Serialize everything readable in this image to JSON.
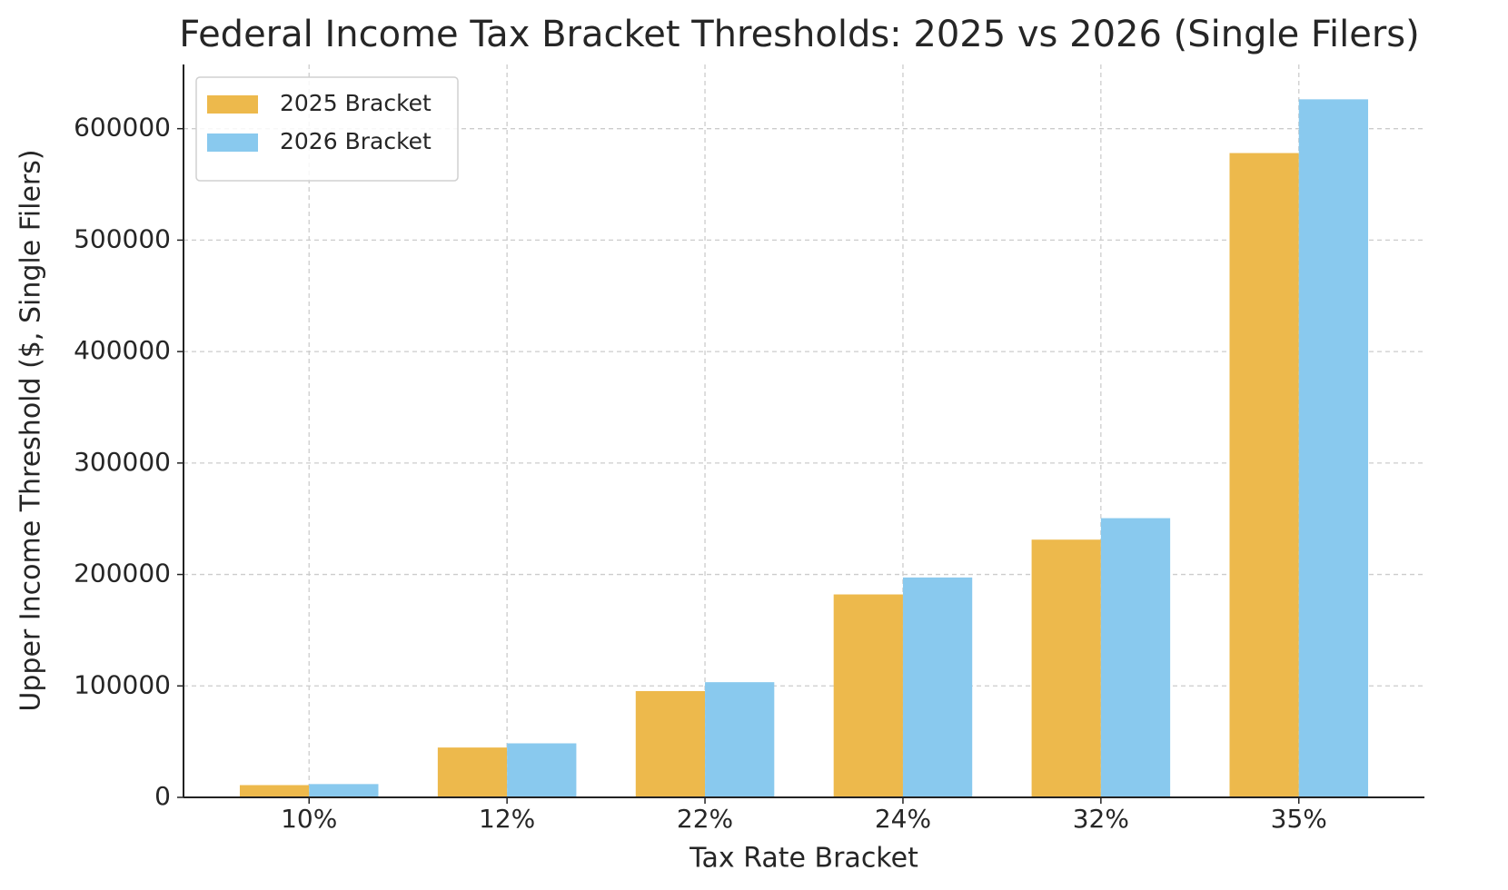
{
  "chart_data": {
    "type": "bar",
    "title": "Federal Income Tax Bracket Thresholds: 2025 vs 2026 (Single Filers)",
    "x_label": "Tax Rate Bracket",
    "y_label": "Upper Income Threshold ($, Single Filers)",
    "categories": [
      "10%",
      "12%",
      "22%",
      "24%",
      "32%",
      "35%"
    ],
    "series": [
      {
        "name": "2025 Bracket",
        "color": "#edb94c",
        "values": [
          11000,
          44725,
          95375,
          182100,
          231250,
          578125
        ]
      },
      {
        "name": "2026 Bracket",
        "color": "#89c9ee",
        "values": [
          11925,
          48475,
          103350,
          197300,
          250525,
          626350
        ]
      }
    ],
    "ylim": [
      0,
      657600
    ],
    "yticks": [
      0,
      100000,
      200000,
      300000,
      400000,
      500000,
      600000
    ],
    "grid": true,
    "legend": "upper-left"
  }
}
